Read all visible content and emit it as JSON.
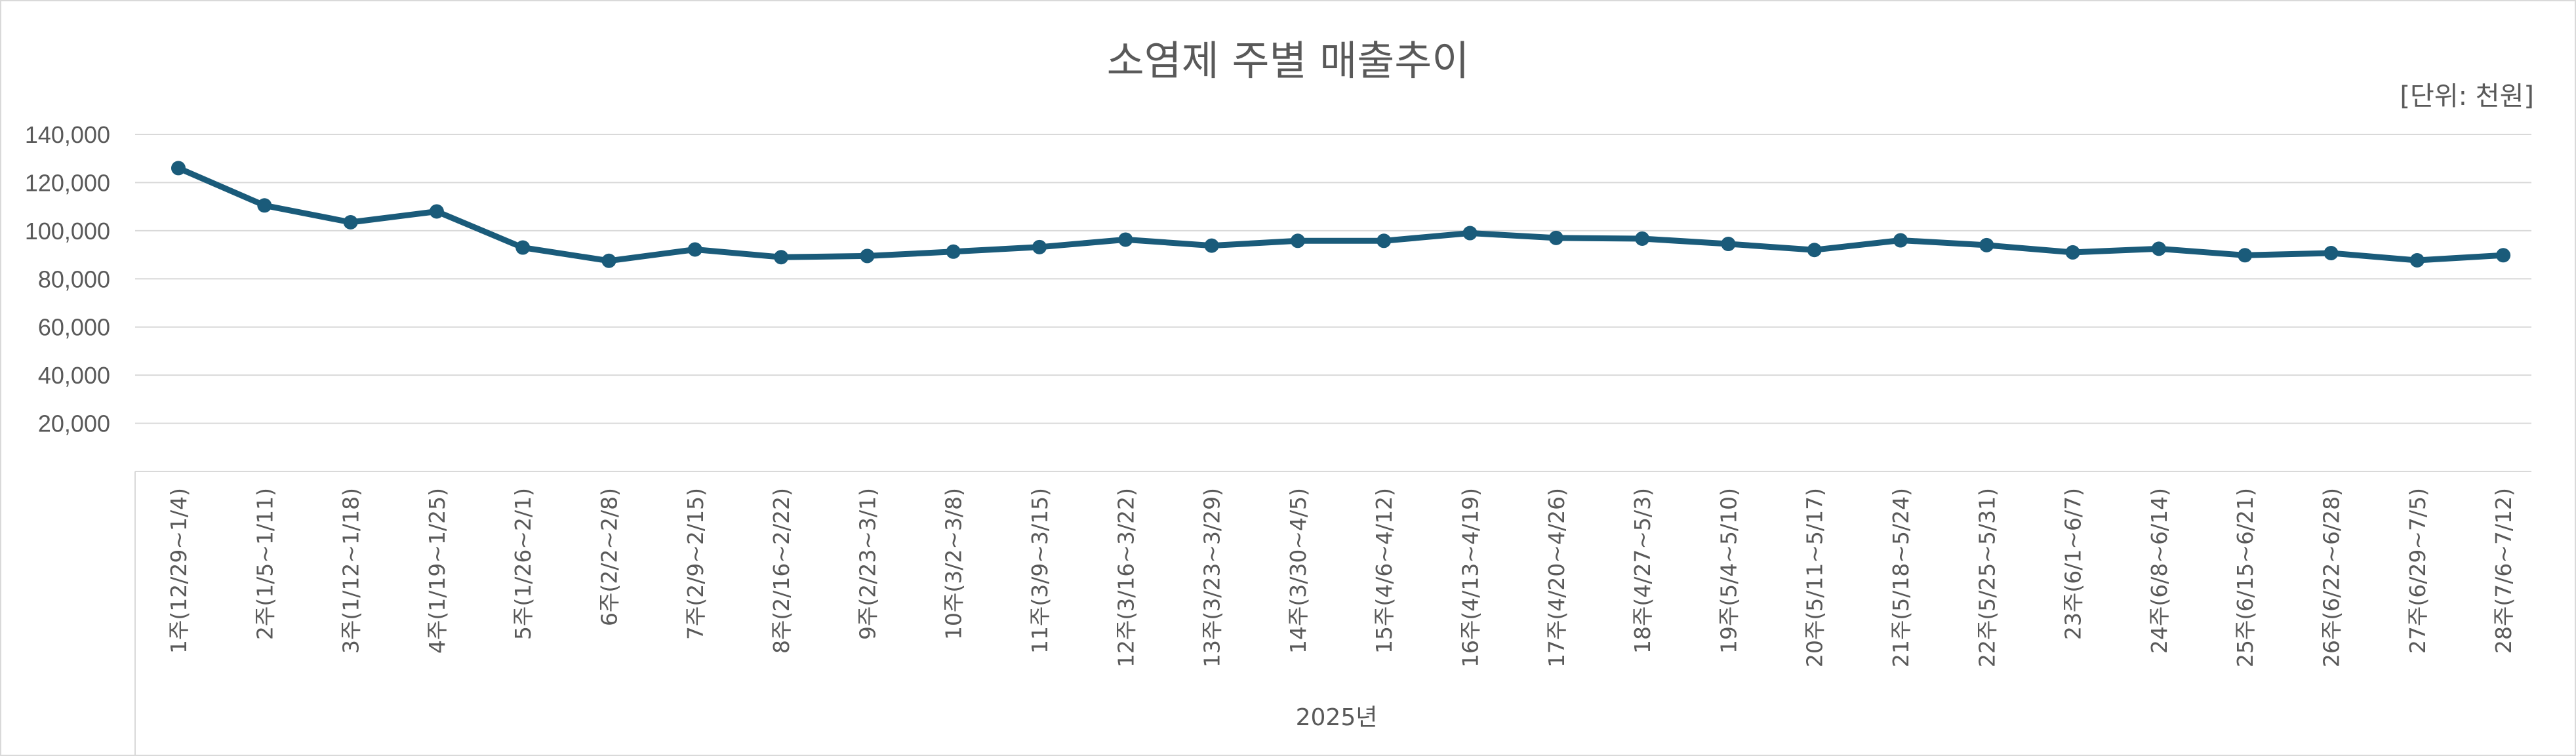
{
  "chart_data": {
    "type": "line",
    "title": "소염제 주별 매출추이",
    "unit_note": "[단위: 천원]",
    "xgroup_label": "2025년",
    "ylim": [
      0,
      140000
    ],
    "yticks": [
      "140,000",
      "120,000",
      "100,000",
      "80,000",
      "60,000",
      "40,000",
      "20,000"
    ],
    "ytick_values": [
      140000,
      120000,
      100000,
      80000,
      60000,
      40000,
      20000
    ],
    "grid": true,
    "legend": "none",
    "series_color": "#1a5b7a",
    "categories": [
      "1주(12/29~1/4)",
      "2주(1/5~1/11)",
      "3주(1/12~1/18)",
      "4주(1/19~1/25)",
      "5주(1/26~2/1)",
      "6주(2/2~2/8)",
      "7주(2/9~2/15)",
      "8주(2/16~2/22)",
      "9주(2/23~3/1)",
      "10주(3/2~3/8)",
      "11주(3/9~3/15)",
      "12주(3/16~3/22)",
      "13주(3/23~3/29)",
      "14주(3/30~4/5)",
      "15주(4/6~4/12)",
      "16주(4/13~4/19)",
      "17주(4/20~4/26)",
      "18주(4/27~5/3)",
      "19주(5/4~5/10)",
      "20주(5/11~5/17)",
      "21주(5/18~5/24)",
      "22주(5/25~5/31)",
      "23주(6/1~6/7)",
      "24주(6/8~6/14)",
      "25주(6/15~6/21)",
      "26주(6/22~6/28)",
      "27주(6/29~7/5)",
      "28주(7/6~7/12)"
    ],
    "values": [
      126000,
      110500,
      103500,
      108000,
      93000,
      87500,
      92200,
      89000,
      89500,
      91300,
      93200,
      96300,
      93800,
      95800,
      95800,
      99000,
      97000,
      96700,
      94500,
      92000,
      96000,
      94000,
      91000,
      92500,
      89800,
      90700,
      87700,
      89800
    ]
  }
}
